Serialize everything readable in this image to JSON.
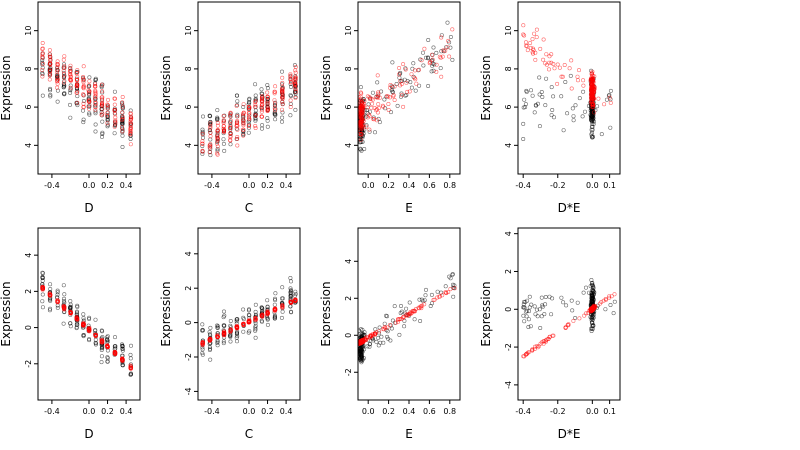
{
  "colors": {
    "observed": "#000000",
    "fitted": "#ff0000",
    "frame": "#000000"
  },
  "chart_data": [
    {
      "type": "scatter",
      "row": 1,
      "col": 1,
      "xlabel": "D",
      "ylabel": "Expression",
      "xlim": [
        -0.55,
        0.55
      ],
      "ylim": [
        2.5,
        11.5
      ],
      "xticks": [
        -0.4,
        0.0,
        0.2,
        0.4
      ],
      "xtick_labels": [
        "-0.4",
        "0.0",
        "0.2",
        "0.4"
      ],
      "yticks": [
        4,
        6,
        8,
        10
      ],
      "ytick_labels": [
        "4",
        "6",
        "8",
        "10"
      ],
      "x_levels": [
        -0.5,
        -0.42,
        -0.34,
        -0.27,
        -0.2,
        -0.13,
        -0.06,
        0.0,
        0.07,
        0.14,
        0.2,
        0.28,
        0.36,
        0.45
      ],
      "series": [
        {
          "role": "observed",
          "trend": [
            [
              -0.5,
              8.0
            ],
            [
              0.45,
              5.0
            ]
          ],
          "spread": 1.9
        },
        {
          "role": "fitted",
          "trend": [
            [
              -0.5,
              8.5
            ],
            [
              0.45,
              5.2
            ]
          ],
          "spread": 1.4
        }
      ]
    },
    {
      "type": "scatter",
      "row": 1,
      "col": 2,
      "xlabel": "C",
      "ylabel": "Expression",
      "xlim": [
        -0.55,
        0.55
      ],
      "ylim": [
        2.5,
        11.5
      ],
      "xticks": [
        -0.4,
        0.0,
        0.2,
        0.4
      ],
      "xtick_labels": [
        "-0.4",
        "0.0",
        "0.2",
        "0.4"
      ],
      "yticks": [
        4,
        6,
        8,
        10
      ],
      "ytick_labels": [
        "4",
        "6",
        "8",
        "10"
      ],
      "x_levels": [
        -0.5,
        -0.42,
        -0.34,
        -0.27,
        -0.2,
        -0.13,
        -0.06,
        0.0,
        0.07,
        0.14,
        0.2,
        0.28,
        0.36,
        0.45,
        0.5
      ],
      "series": [
        {
          "role": "observed",
          "trend": [
            [
              -0.5,
              4.3
            ],
            [
              0.5,
              7.0
            ]
          ],
          "spread": 1.8
        },
        {
          "role": "fitted",
          "trend": [
            [
              -0.5,
              4.0
            ],
            [
              0.5,
              7.2
            ]
          ],
          "spread": 1.2
        }
      ]
    },
    {
      "type": "scatter",
      "row": 1,
      "col": 3,
      "xlabel": "E",
      "ylabel": "Expression",
      "xlim": [
        -0.1,
        0.9
      ],
      "ylim": [
        2.5,
        11.5
      ],
      "xticks": [
        0.0,
        0.2,
        0.4,
        0.6,
        0.8
      ],
      "xtick_labels": [
        "0.0",
        "0.2",
        "0.4",
        "0.6",
        "0.8"
      ],
      "yticks": [
        4,
        6,
        8,
        10
      ],
      "ytick_labels": [
        "4",
        "6",
        "8",
        "10"
      ],
      "cluster": {
        "x_center": -0.07,
        "x_width": 0.035,
        "share": 0.55
      },
      "x_range": [
        -0.08,
        0.85
      ],
      "series": [
        {
          "role": "observed",
          "trend": [
            [
              -0.08,
              5.2
            ],
            [
              0.85,
              9.5
            ]
          ],
          "spread": 1.9
        },
        {
          "role": "fitted",
          "trend": [
            [
              -0.08,
              5.5
            ],
            [
              0.85,
              9.5
            ]
          ],
          "spread": 1.5
        }
      ]
    },
    {
      "type": "scatter",
      "row": 1,
      "col": 4,
      "xlabel": "D*E",
      "ylabel": "Expression",
      "xlim": [
        -0.43,
        0.16
      ],
      "ylim": [
        2.5,
        11.5
      ],
      "xticks": [
        -0.4,
        -0.2,
        0.0,
        0.1
      ],
      "xtick_labels": [
        "-0.4",
        "-0.2",
        "0.0",
        "0.1"
      ],
      "yticks": [
        4,
        6,
        8,
        10
      ],
      "ytick_labels": [
        "4",
        "6",
        "8",
        "10"
      ],
      "cluster": {
        "x_center": 0.0,
        "x_width": 0.015,
        "share": 0.7
      },
      "x_range": [
        -0.4,
        0.14
      ],
      "series": [
        {
          "role": "observed",
          "trend": [
            [
              -0.4,
              6.0
            ],
            [
              0.14,
              6.0
            ]
          ],
          "spread": 2.0
        },
        {
          "role": "fitted",
          "trend": [
            [
              -0.4,
              9.5
            ],
            [
              0.14,
              6.0
            ]
          ],
          "spread": 1.2
        }
      ]
    },
    {
      "type": "scatter",
      "row": 2,
      "col": 1,
      "xlabel": "D",
      "ylabel": "Expression",
      "xlim": [
        -0.55,
        0.55
      ],
      "ylim": [
        -4.0,
        5.5
      ],
      "xticks": [
        -0.4,
        0.0,
        0.2,
        0.4
      ],
      "xtick_labels": [
        "-0.4",
        "0.0",
        "0.2",
        "0.4"
      ],
      "yticks": [
        -2,
        0,
        2,
        4
      ],
      "ytick_labels": [
        "-2",
        "0",
        "2",
        "4"
      ],
      "x_levels": [
        -0.5,
        -0.42,
        -0.34,
        -0.27,
        -0.2,
        -0.13,
        -0.06,
        0.0,
        0.07,
        0.14,
        0.2,
        0.28,
        0.36,
        0.45
      ],
      "series": [
        {
          "role": "observed",
          "trend": [
            [
              -0.5,
              2.2
            ],
            [
              0.45,
              -2.0
            ]
          ],
          "spread": 1.3
        },
        {
          "role": "fitted",
          "trend": [
            [
              -0.5,
              2.2
            ],
            [
              0.45,
              -2.2
            ]
          ],
          "spread": 0.12
        }
      ]
    },
    {
      "type": "scatter",
      "row": 2,
      "col": 2,
      "xlabel": "C",
      "ylabel": "Expression",
      "xlim": [
        -0.55,
        0.55
      ],
      "ylim": [
        -4.5,
        5.5
      ],
      "xticks": [
        -0.4,
        0.0,
        0.2,
        0.4
      ],
      "xtick_labels": [
        "-0.4",
        "0.0",
        "0.2",
        "0.4"
      ],
      "yticks": [
        -4,
        -2,
        0,
        2,
        4
      ],
      "ytick_labels": [
        "-4",
        "-2",
        "0",
        "2",
        "4"
      ],
      "x_levels": [
        -0.5,
        -0.42,
        -0.34,
        -0.27,
        -0.2,
        -0.13,
        -0.06,
        0.0,
        0.07,
        0.14,
        0.2,
        0.28,
        0.36,
        0.45,
        0.5
      ],
      "series": [
        {
          "role": "observed",
          "trend": [
            [
              -0.5,
              -1.2
            ],
            [
              0.5,
              1.5
            ]
          ],
          "spread": 1.3
        },
        {
          "role": "fitted",
          "trend": [
            [
              -0.5,
              -1.2
            ],
            [
              0.5,
              1.3
            ]
          ],
          "spread": 0.12
        }
      ]
    },
    {
      "type": "scatter",
      "row": 2,
      "col": 3,
      "xlabel": "E",
      "ylabel": "Expression",
      "xlim": [
        -0.1,
        0.9
      ],
      "ylim": [
        -3.5,
        5.8
      ],
      "xticks": [
        0.0,
        0.2,
        0.4,
        0.6,
        0.8
      ],
      "xtick_labels": [
        "0.0",
        "0.2",
        "0.4",
        "0.6",
        "0.8"
      ],
      "yticks": [
        -2,
        0,
        2,
        4
      ],
      "ytick_labels": [
        "-2",
        "0",
        "2",
        "4"
      ],
      "cluster": {
        "x_center": -0.07,
        "x_width": 0.035,
        "share": 0.55
      },
      "x_range": [
        -0.08,
        0.85
      ],
      "series": [
        {
          "role": "observed",
          "trend": [
            [
              -0.08,
              -0.6
            ],
            [
              0.85,
              2.8
            ]
          ],
          "spread": 1.2
        },
        {
          "role": "fitted",
          "trend": [
            [
              -0.08,
              -0.4
            ],
            [
              0.85,
              2.6
            ]
          ],
          "spread": 0.12
        }
      ]
    },
    {
      "type": "scatter",
      "row": 2,
      "col": 4,
      "xlabel": "D*E",
      "ylabel": "Expression",
      "xlim": [
        -0.43,
        0.16
      ],
      "ylim": [
        -4.8,
        4.3
      ],
      "xticks": [
        -0.4,
        -0.2,
        0.0,
        0.1
      ],
      "xtick_labels": [
        "-0.4",
        "-0.2",
        "0.0",
        "0.1"
      ],
      "yticks": [
        -4,
        -2,
        0,
        2,
        4
      ],
      "ytick_labels": [
        "-4",
        "-2",
        "0",
        "2",
        "4"
      ],
      "cluster": {
        "x_center": 0.0,
        "x_width": 0.015,
        "share": 0.7
      },
      "x_range": [
        -0.4,
        0.14
      ],
      "series": [
        {
          "role": "observed",
          "trend": [
            [
              -0.4,
              -0.2
            ],
            [
              0.14,
              0.4
            ]
          ],
          "spread": 1.5
        },
        {
          "role": "fitted",
          "trend": [
            [
              -0.4,
              -2.5
            ],
            [
              0.14,
              0.9
            ]
          ],
          "spread": 0.12
        }
      ]
    }
  ]
}
